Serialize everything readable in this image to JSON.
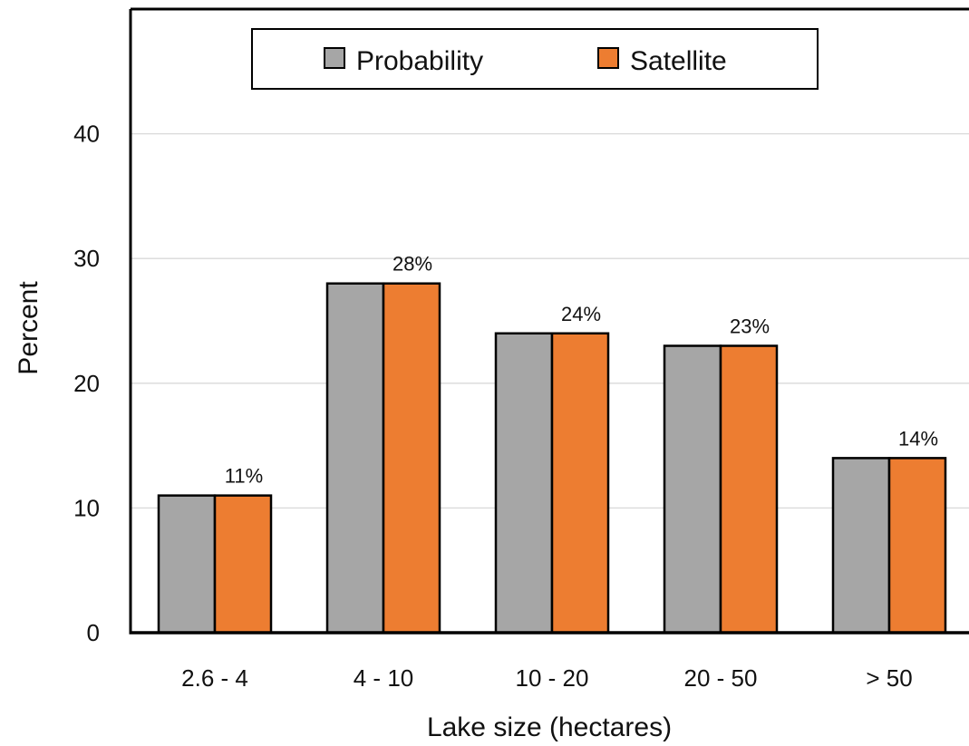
{
  "chart_data": {
    "type": "bar",
    "title": "",
    "xlabel": "Lake size (hectares)",
    "ylabel": "Percent",
    "categories": [
      "2.6 - 4",
      "4 - 10",
      "10 - 20",
      "20 - 50",
      "> 50"
    ],
    "series": [
      {
        "name": "Probability",
        "values": [
          11,
          28,
          24,
          23,
          14
        ],
        "color": "#A6A6A6"
      },
      {
        "name": "Satellite",
        "values": [
          11,
          28,
          24,
          23,
          14
        ],
        "color": "#ED7D31"
      }
    ],
    "data_labels": [
      "11%",
      "28%",
      "24%",
      "23%",
      "14%"
    ],
    "ylim": [
      0,
      50
    ],
    "yticks": [
      0,
      10,
      20,
      30,
      40
    ],
    "grid": true,
    "legend_position": "top"
  }
}
